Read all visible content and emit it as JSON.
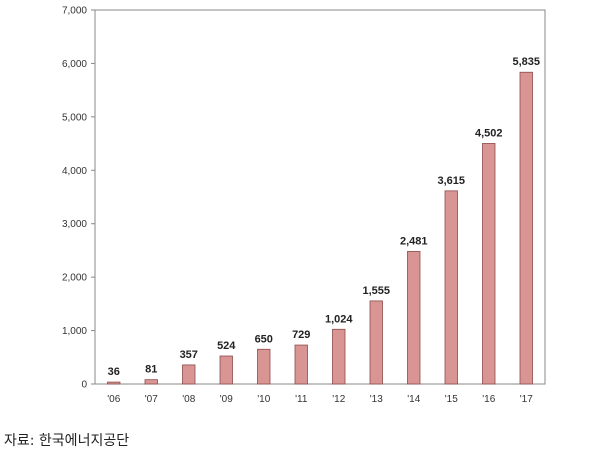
{
  "chart_data": {
    "type": "bar",
    "categories": [
      "'06",
      "'07",
      "'08",
      "'09",
      "'10",
      "'11",
      "'12",
      "'13",
      "'14",
      "'15",
      "'16",
      "'17"
    ],
    "values": [
      36,
      81,
      357,
      524,
      650,
      729,
      1024,
      1555,
      2481,
      3615,
      4502,
      5835
    ],
    "data_labels": [
      "36",
      "81",
      "357",
      "524",
      "650",
      "729",
      "1,024",
      "1,555",
      "2,481",
      "3,615",
      "4,502",
      "5,835"
    ],
    "y_ticks": [
      0,
      1000,
      2000,
      3000,
      4000,
      5000,
      6000,
      7000
    ],
    "y_tick_labels": [
      "0",
      "1,000",
      "2,000",
      "3,000",
      "4,000",
      "5,000",
      "6,000",
      "7,000"
    ],
    "ylim": [
      0,
      7000
    ],
    "title": "",
    "xlabel": "",
    "ylabel": "",
    "grid": false,
    "legend": "none",
    "colors": {
      "bar_fill": "#d99594",
      "bar_stroke": "#8c4b4a"
    }
  },
  "source": "자료: 한국에너지공단"
}
